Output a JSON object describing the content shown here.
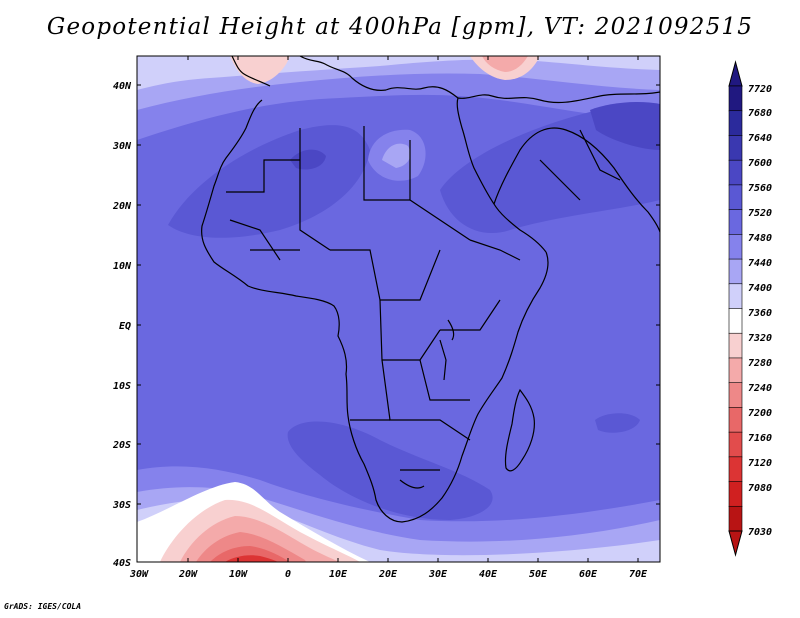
{
  "title": "Geopotential Height at 400hPa [gpm], VT: 2021092515",
  "credit": "GrADS: IGES/COLA",
  "lat_labels": [
    "40N",
    "30N",
    "20N",
    "10N",
    "EQ",
    "10S",
    "20S",
    "30S",
    "40S"
  ],
  "lon_labels": [
    "30W",
    "20W",
    "10W",
    "0",
    "10E",
    "20E",
    "30E",
    "40E",
    "50E",
    "60E",
    "70E"
  ],
  "colorbar": {
    "levels": [
      "7720",
      "7680",
      "7640",
      "7600",
      "7560",
      "7520",
      "7480",
      "7440",
      "7400",
      "7360",
      "7320",
      "7280",
      "7240",
      "7200",
      "7160",
      "7120",
      "7080",
      "7030"
    ],
    "colors": [
      "#201880",
      "#2b2a9c",
      "#3a38b0",
      "#4b47c4",
      "#5a58d4",
      "#6a68e0",
      "#8582ec",
      "#a8a6f4",
      "#d0d0fa",
      "#ffffff",
      "#f8d0d0",
      "#f4aaaa",
      "#ee8888",
      "#e86868",
      "#e24c4c",
      "#dc3434",
      "#d02020",
      "#b81414"
    ]
  }
}
